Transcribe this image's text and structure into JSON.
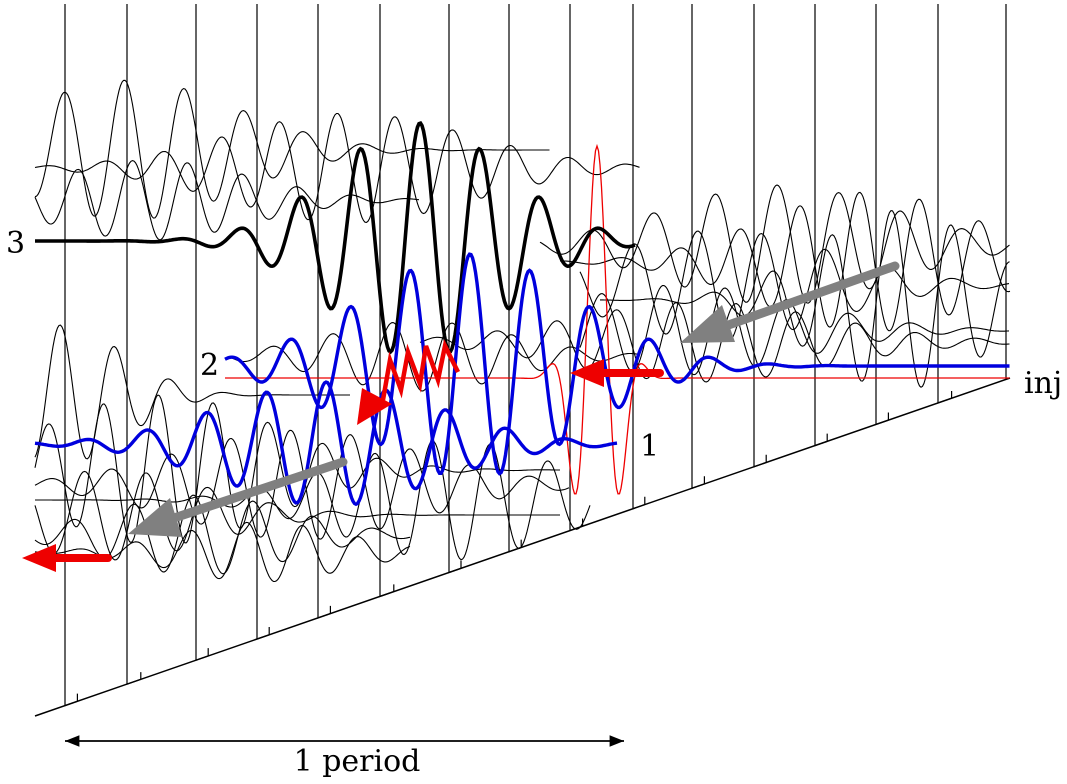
{
  "labels": {
    "trace_1": "1",
    "trace_2": "2",
    "trace_3": "3",
    "injection": "inj",
    "period": "1 period"
  },
  "colors": {
    "ink": "#000000",
    "highlight_trace": "#0000dd",
    "injected_pulse": "#ee0000",
    "propagation_arrow": "#808080"
  }
}
